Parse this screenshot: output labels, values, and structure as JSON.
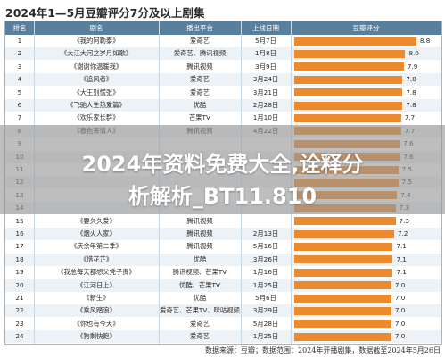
{
  "page": {
    "title": "2024年1—5月豆瓣评分7分及以上剧集",
    "overlay_title_line1": "2024年资料免费大全,诠释分",
    "overlay_title_line2": "析解析_BT11.810",
    "footer": "数据来源：豆瓣；数据范围：2024年开播剧集，数据截至2024年5月26日"
  },
  "table": {
    "headers": [
      "排名",
      "剧名",
      "播出平台",
      "上线日期",
      "豆瓣评分"
    ]
  },
  "chart_data": {
    "type": "bar",
    "orientation": "horizontal",
    "xlim": [
      0,
      9
    ],
    "bar_color": "#ec8a2e",
    "rows": [
      {
        "rank": "1",
        "title": "《我的阿勒泰》",
        "platform": "爱奇艺",
        "date": "5月7日",
        "score": 8.8
      },
      {
        "rank": "2",
        "title": "《大江大河之岁月如歌》",
        "platform": "爱奇艺、腾讯视频",
        "date": "1月8日",
        "score": 8.0
      },
      {
        "rank": "3",
        "title": "《谢谢你温暖我》",
        "platform": "腾讯视频",
        "date": "3月9日",
        "score": 7.9
      },
      {
        "rank": "4",
        "title": "《追风者》",
        "platform": "爱奇艺",
        "date": "3月24日",
        "score": 7.8
      },
      {
        "rank": "5",
        "title": "《大王别慌张》",
        "platform": "爱奇艺",
        "date": "3月21日",
        "score": 7.8
      },
      {
        "rank": "6",
        "title": "《飞驰人生热爱篇》",
        "platform": "优酷",
        "date": "2月28日",
        "score": 7.8
      },
      {
        "rank": "7",
        "title": "《欢乐家长群》",
        "platform": "芒果TV",
        "date": "1月10日",
        "score": 7.7
      },
      {
        "rank": "8",
        "title": "《春色寄情人》",
        "platform": "腾讯视频",
        "date": "4月22日",
        "score": 7.7
      },
      {
        "rank": "9",
        "title": "",
        "platform": "",
        "date": "",
        "score": 7.6
      },
      {
        "rank": "10",
        "title": "",
        "platform": "",
        "date": "",
        "score": 7.6
      },
      {
        "rank": "11",
        "title": "",
        "platform": "",
        "date": "",
        "score": 7.5
      },
      {
        "rank": "12",
        "title": "",
        "platform": "",
        "date": "",
        "score": 7.5
      },
      {
        "rank": "13",
        "title": "",
        "platform": "",
        "date": "",
        "score": 7.4
      },
      {
        "rank": "14",
        "title": "",
        "platform": "",
        "date": "",
        "score": 7.3
      },
      {
        "rank": "15",
        "title": "《要久久爱》",
        "platform": "腾讯视频",
        "date": "",
        "score": 7.3
      },
      {
        "rank": "16",
        "title": "《烟火人家》",
        "platform": "腾讯视频",
        "date": "2月13日",
        "score": 7.2
      },
      {
        "rank": "17",
        "title": "《庆余年第二季》",
        "platform": "腾讯视频",
        "date": "5月16日",
        "score": 7.1
      },
      {
        "rank": "18",
        "title": "《惜花芷》",
        "platform": "优酷",
        "date": "3月26日",
        "score": 7.1
      },
      {
        "rank": "19",
        "title": "《我总每天都想父凭子贵》",
        "platform": "腾讯视频、芒果TV",
        "date": "1月16日",
        "score": 7.1
      },
      {
        "rank": "20",
        "title": "《江河日上》",
        "platform": "优酷、芒果TV",
        "date": "1月25日",
        "score": 7.0
      },
      {
        "rank": "21",
        "title": "《新生》",
        "platform": "优酷",
        "date": "5月6日",
        "score": 7.0
      },
      {
        "rank": "22",
        "title": "《乘风踏浪》",
        "platform": "爱奇艺、芒果TV、咪咕视频",
        "date": "3月29日",
        "score": 7.0
      },
      {
        "rank": "23",
        "title": "《你也有今天》",
        "platform": "爱奇艺",
        "date": "5月28日",
        "score": 7.0
      },
      {
        "rank": "24",
        "title": "《狗剩快跑》",
        "platform": "爱奇艺",
        "date": "1月25日",
        "score": 7.0
      }
    ]
  }
}
